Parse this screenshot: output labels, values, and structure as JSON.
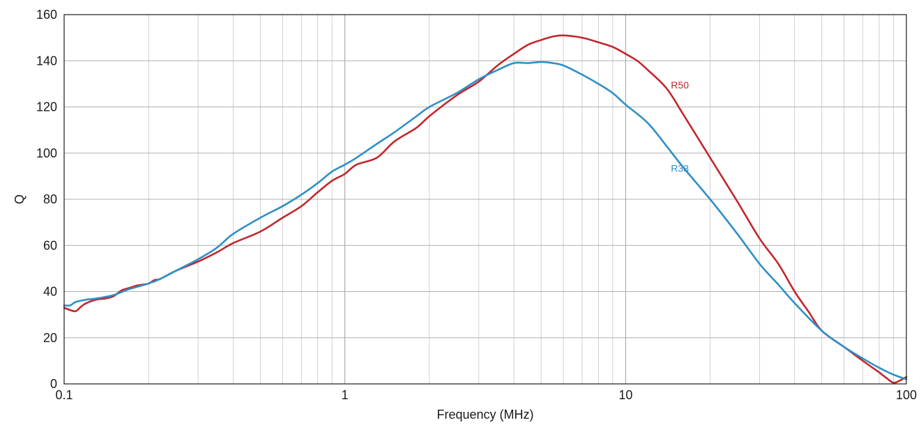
{
  "chart_data": {
    "type": "line",
    "xlabel": "Frequency (MHz)",
    "ylabel": "Q",
    "xscale": "log",
    "xlim": [
      0.1,
      100
    ],
    "ylim": [
      0,
      160
    ],
    "grid": true,
    "x_tick_labels": [
      {
        "value": 0.1,
        "label": "0.1"
      },
      {
        "value": 1,
        "label": "1"
      },
      {
        "value": 10,
        "label": "10"
      },
      {
        "value": 100,
        "label": "100"
      }
    ],
    "y_tick_labels": [
      {
        "value": 0,
        "label": "0"
      },
      {
        "value": 20,
        "label": "20"
      },
      {
        "value": 40,
        "label": "40"
      },
      {
        "value": 60,
        "label": "60"
      },
      {
        "value": 80,
        "label": "80"
      },
      {
        "value": 100,
        "label": "100"
      },
      {
        "value": 120,
        "label": "120"
      },
      {
        "value": 140,
        "label": "140"
      },
      {
        "value": 160,
        "label": "160"
      }
    ],
    "series": [
      {
        "name": "R50",
        "color": "#c1272d",
        "label_at": {
          "x": 14.5,
          "y": 128
        },
        "points": [
          [
            0.1,
            33
          ],
          [
            0.105,
            32
          ],
          [
            0.11,
            31.5
          ],
          [
            0.115,
            33.5
          ],
          [
            0.12,
            35
          ],
          [
            0.13,
            36.5
          ],
          [
            0.14,
            37
          ],
          [
            0.15,
            38
          ],
          [
            0.16,
            40.5
          ],
          [
            0.17,
            41.5
          ],
          [
            0.18,
            42.5
          ],
          [
            0.19,
            43
          ],
          [
            0.2,
            43.5
          ],
          [
            0.21,
            45
          ],
          [
            0.22,
            45.5
          ],
          [
            0.25,
            49
          ],
          [
            0.3,
            53
          ],
          [
            0.35,
            57
          ],
          [
            0.4,
            61
          ],
          [
            0.5,
            66
          ],
          [
            0.6,
            72
          ],
          [
            0.7,
            77
          ],
          [
            0.8,
            83
          ],
          [
            0.9,
            88
          ],
          [
            1.0,
            91
          ],
          [
            1.1,
            95
          ],
          [
            1.3,
            98
          ],
          [
            1.5,
            105
          ],
          [
            1.8,
            111
          ],
          [
            2.0,
            116
          ],
          [
            2.5,
            125
          ],
          [
            3.0,
            131
          ],
          [
            3.5,
            138
          ],
          [
            4.0,
            143
          ],
          [
            4.5,
            147
          ],
          [
            5.0,
            149
          ],
          [
            5.5,
            150.5
          ],
          [
            6.0,
            151
          ],
          [
            7.0,
            150
          ],
          [
            8.0,
            148
          ],
          [
            9.0,
            146
          ],
          [
            10.0,
            143
          ],
          [
            11.0,
            140
          ],
          [
            12.0,
            136
          ],
          [
            14.0,
            128
          ],
          [
            16.0,
            117
          ],
          [
            18.0,
            107
          ],
          [
            20.0,
            98
          ],
          [
            25.0,
            79
          ],
          [
            30.0,
            63
          ],
          [
            35.0,
            52
          ],
          [
            40.0,
            40
          ],
          [
            45.0,
            31
          ],
          [
            50.0,
            23
          ],
          [
            60.0,
            16
          ],
          [
            70.0,
            10
          ],
          [
            80.0,
            5
          ],
          [
            85.0,
            2.5
          ],
          [
            90.0,
            0.5
          ],
          [
            95.0,
            1.5
          ],
          [
            100.0,
            3
          ]
        ]
      },
      {
        "name": "R33",
        "color": "#2f8fc6",
        "label_at": {
          "x": 14.5,
          "y": 92
        },
        "points": [
          [
            0.1,
            34
          ],
          [
            0.105,
            34
          ],
          [
            0.11,
            35.5
          ],
          [
            0.12,
            36.5
          ],
          [
            0.13,
            37
          ],
          [
            0.15,
            38.5
          ],
          [
            0.17,
            41
          ],
          [
            0.2,
            43.5
          ],
          [
            0.22,
            45.5
          ],
          [
            0.25,
            49
          ],
          [
            0.3,
            54
          ],
          [
            0.35,
            59
          ],
          [
            0.4,
            65
          ],
          [
            0.5,
            72
          ],
          [
            0.6,
            77
          ],
          [
            0.7,
            82
          ],
          [
            0.8,
            87
          ],
          [
            0.9,
            92
          ],
          [
            1.0,
            95
          ],
          [
            1.1,
            98
          ],
          [
            1.3,
            104
          ],
          [
            1.5,
            109
          ],
          [
            1.8,
            116
          ],
          [
            2.0,
            120
          ],
          [
            2.5,
            126
          ],
          [
            3.0,
            132
          ],
          [
            3.5,
            136
          ],
          [
            4.0,
            139
          ],
          [
            4.5,
            139
          ],
          [
            5.0,
            139.5
          ],
          [
            5.5,
            139
          ],
          [
            6.0,
            138
          ],
          [
            7.0,
            134
          ],
          [
            8.0,
            130
          ],
          [
            9.0,
            126
          ],
          [
            10.0,
            121
          ],
          [
            12.0,
            113
          ],
          [
            14.0,
            103
          ],
          [
            16.0,
            94
          ],
          [
            20.0,
            80
          ],
          [
            25.0,
            65
          ],
          [
            30.0,
            52
          ],
          [
            35.0,
            43
          ],
          [
            40.0,
            35
          ],
          [
            50.0,
            23
          ],
          [
            60.0,
            16
          ],
          [
            70.0,
            11
          ],
          [
            80.0,
            7
          ],
          [
            90.0,
            4
          ],
          [
            100.0,
            2
          ]
        ]
      }
    ]
  }
}
